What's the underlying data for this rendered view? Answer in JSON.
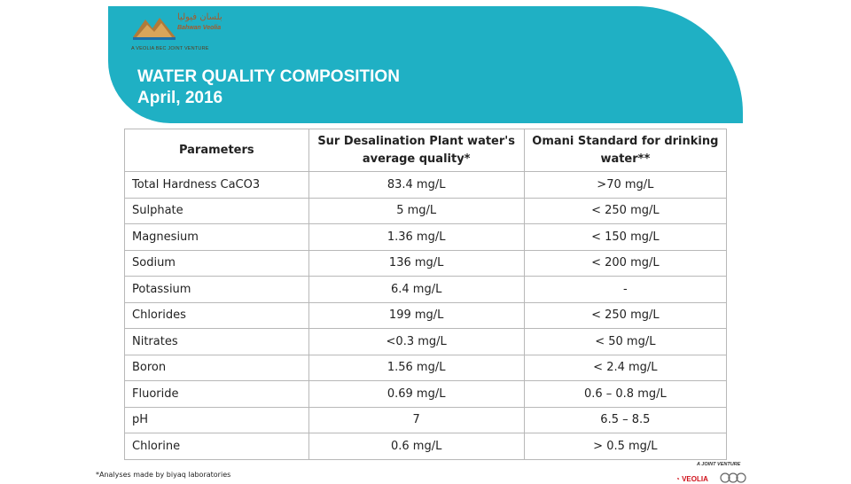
{
  "header": {
    "logo": {
      "arabic": "بلسان فيوليا",
      "name": "Bahwan Veolia",
      "tagline": "A VEOLIA BEC JOINT VENTURE"
    },
    "title": "WATER QUALITY COMPOSITION",
    "subtitle": "April, 2016",
    "accent_color": "#1fb0c4"
  },
  "table": {
    "headers": [
      "Parameters",
      "Sur Desalination Plant water's average quality*",
      "Omani Standard for drinking water**"
    ],
    "rows": [
      [
        "Total Hardness CaCO3",
        "83.4 mg/L",
        ">70 mg/L"
      ],
      [
        "Sulphate",
        "5 mg/L",
        "< 250 mg/L"
      ],
      [
        "Magnesium",
        "1.36 mg/L",
        "< 150 mg/L"
      ],
      [
        "Sodium",
        "136 mg/L",
        "< 200 mg/L"
      ],
      [
        "Potassium",
        "6.4 mg/L",
        "-"
      ],
      [
        "Chlorides",
        "199 mg/L",
        "< 250 mg/L"
      ],
      [
        "Nitrates",
        "<0.3 mg/L",
        "< 50 mg/L"
      ],
      [
        "Boron",
        "1.56 mg/L",
        "< 2.4 mg/L"
      ],
      [
        "Fluoride",
        "0.69 mg/L",
        "0.6 – 0.8 mg/L"
      ],
      [
        "pH",
        "7",
        "6.5 – 8.5"
      ],
      [
        "Chlorine",
        "0.6 mg/L",
        "> 0.5 mg/L"
      ]
    ]
  },
  "footnote": "*Analyses made by biyaq laboratories",
  "footer": {
    "jv_label": "A JOINT VENTURE",
    "veolia": "VEOLIA"
  }
}
